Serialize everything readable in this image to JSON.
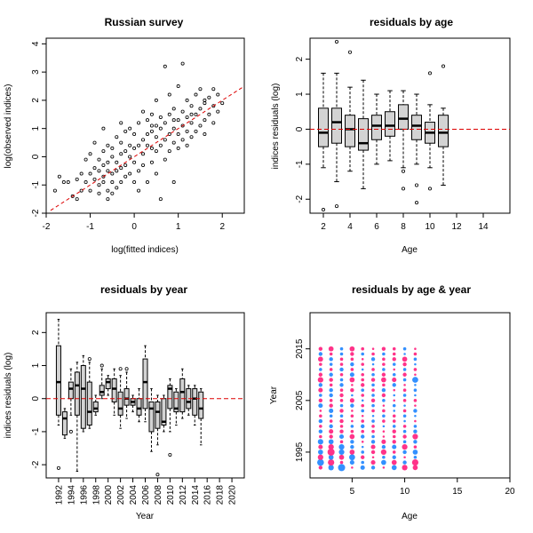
{
  "chart_data": [
    {
      "type": "scatter",
      "title": "Russian survey",
      "xlabel": "log(fitted indices)",
      "ylabel": "log(observed indices)",
      "xlim": [
        -2.0,
        2.5
      ],
      "ylim": [
        -2.0,
        4.2
      ],
      "xticks": [
        "-2",
        "-1",
        "0",
        "1",
        "2"
      ],
      "yticks": [
        "-2",
        "-1",
        "0",
        "1",
        "2",
        "3",
        "4"
      ],
      "ref_line": {
        "slope": 1,
        "intercept": 0,
        "color": "#dd0000",
        "style": "dashed"
      },
      "points": [
        [
          -1.8,
          -1.2
        ],
        [
          -1.7,
          -0.7
        ],
        [
          -1.6,
          -0.9
        ],
        [
          -1.5,
          -0.9
        ],
        [
          -1.4,
          -1.4
        ],
        [
          -1.3,
          -0.8
        ],
        [
          -1.3,
          -1.5
        ],
        [
          -1.2,
          -1.2
        ],
        [
          -1.2,
          -0.6
        ],
        [
          -1.1,
          -0.9
        ],
        [
          -1.1,
          -0.1
        ],
        [
          -1.0,
          -1.2
        ],
        [
          -1.0,
          -0.6
        ],
        [
          -1.0,
          0.1
        ],
        [
          -0.9,
          -0.8
        ],
        [
          -0.9,
          -0.4
        ],
        [
          -0.9,
          0.5
        ],
        [
          -0.8,
          -1.3
        ],
        [
          -0.8,
          -1.0
        ],
        [
          -0.8,
          -0.5
        ],
        [
          -0.8,
          -0.1
        ],
        [
          -0.7,
          -0.9
        ],
        [
          -0.7,
          -0.7
        ],
        [
          -0.7,
          -0.3
        ],
        [
          -0.7,
          0.2
        ],
        [
          -0.7,
          1.0
        ],
        [
          -0.6,
          -1.5
        ],
        [
          -0.6,
          -1.2
        ],
        [
          -0.6,
          -0.5
        ],
        [
          -0.6,
          -0.2
        ],
        [
          -0.6,
          0.4
        ],
        [
          -0.5,
          -1.3
        ],
        [
          -0.5,
          -0.9
        ],
        [
          -0.5,
          -0.6
        ],
        [
          -0.5,
          0.0
        ],
        [
          -0.5,
          0.3
        ],
        [
          -0.4,
          -1.1
        ],
        [
          -0.4,
          -0.5
        ],
        [
          -0.4,
          -0.2
        ],
        [
          -0.4,
          0.7
        ],
        [
          -0.3,
          -0.9
        ],
        [
          -0.3,
          -0.4
        ],
        [
          -0.3,
          0.1
        ],
        [
          -0.3,
          0.5
        ],
        [
          -0.3,
          1.2
        ],
        [
          -0.2,
          -0.7
        ],
        [
          -0.2,
          -0.3
        ],
        [
          -0.2,
          0.2
        ],
        [
          -0.2,
          0.9
        ],
        [
          -0.1,
          -0.6
        ],
        [
          -0.1,
          0.0
        ],
        [
          -0.1,
          0.4
        ],
        [
          -0.1,
          1.0
        ],
        [
          0.0,
          -0.9
        ],
        [
          0.0,
          -0.2
        ],
        [
          0.0,
          0.3
        ],
        [
          0.0,
          0.8
        ],
        [
          0.1,
          -1.2
        ],
        [
          0.1,
          -0.5
        ],
        [
          0.1,
          0.4
        ],
        [
          0.1,
          1.2
        ],
        [
          0.2,
          -0.3
        ],
        [
          0.2,
          0.1
        ],
        [
          0.2,
          0.6
        ],
        [
          0.2,
          1.6
        ],
        [
          0.3,
          -0.9
        ],
        [
          0.3,
          0.4
        ],
        [
          0.3,
          0.8
        ],
        [
          0.3,
          1.3
        ],
        [
          0.4,
          -0.2
        ],
        [
          0.4,
          0.3
        ],
        [
          0.4,
          0.9
        ],
        [
          0.4,
          1.5
        ],
        [
          0.5,
          -0.6
        ],
        [
          0.5,
          0.2
        ],
        [
          0.5,
          0.7
        ],
        [
          0.5,
          1.1
        ],
        [
          0.5,
          2.0
        ],
        [
          0.6,
          -1.5
        ],
        [
          0.6,
          0.4
        ],
        [
          0.6,
          1.0
        ],
        [
          0.6,
          1.4
        ],
        [
          0.7,
          -0.1
        ],
        [
          0.7,
          0.6
        ],
        [
          0.7,
          1.2
        ],
        [
          0.7,
          3.2
        ],
        [
          0.8,
          0.2
        ],
        [
          0.8,
          0.8
        ],
        [
          0.8,
          1.5
        ],
        [
          0.8,
          2.2
        ],
        [
          0.9,
          -0.9
        ],
        [
          0.9,
          0.5
        ],
        [
          0.9,
          1.0
        ],
        [
          0.9,
          1.7
        ],
        [
          1.0,
          0.3
        ],
        [
          1.0,
          0.8
        ],
        [
          1.0,
          1.3
        ],
        [
          1.0,
          2.5
        ],
        [
          1.1,
          0.6
        ],
        [
          1.1,
          1.1
        ],
        [
          1.1,
          1.6
        ],
        [
          1.1,
          3.3
        ],
        [
          1.2,
          0.4
        ],
        [
          1.2,
          0.9
        ],
        [
          1.2,
          1.4
        ],
        [
          1.2,
          2.0
        ],
        [
          1.3,
          0.7
        ],
        [
          1.3,
          1.2
        ],
        [
          1.3,
          1.8
        ],
        [
          1.4,
          0.9
        ],
        [
          1.4,
          1.5
        ],
        [
          1.4,
          2.2
        ],
        [
          1.5,
          1.1
        ],
        [
          1.5,
          1.7
        ],
        [
          1.5,
          2.4
        ],
        [
          1.6,
          0.8
        ],
        [
          1.6,
          1.3
        ],
        [
          1.6,
          1.9
        ],
        [
          1.7,
          1.5
        ],
        [
          1.7,
          2.1
        ],
        [
          1.8,
          1.2
        ],
        [
          1.8,
          1.8
        ],
        [
          1.8,
          2.4
        ],
        [
          1.9,
          1.6
        ],
        [
          1.9,
          2.2
        ],
        [
          2.0,
          1.9
        ],
        [
          1.6,
          2.0
        ],
        [
          1.3,
          1.5
        ],
        [
          0.9,
          1.3
        ],
        [
          0.4,
          1.1
        ]
      ]
    },
    {
      "type": "box",
      "title": "residuals by age",
      "xlabel": "Age",
      "ylabel": "indices residuals (log)",
      "xlim": [
        1,
        16
      ],
      "ylim": [
        -2.4,
        2.6
      ],
      "xticks": [
        "2",
        "4",
        "6",
        "8",
        "10",
        "12",
        "14"
      ],
      "yticks": [
        "-2",
        "-1",
        "0",
        "1",
        "2"
      ],
      "ref_line": {
        "y": 0,
        "color": "#dd0000",
        "style": "dashed"
      },
      "boxes": [
        {
          "x": 2,
          "lo": -1.1,
          "q1": -0.5,
          "med": -0.1,
          "q3": 0.6,
          "hi": 1.6,
          "out": [
            -2.3
          ]
        },
        {
          "x": 3,
          "lo": -1.5,
          "q1": -0.4,
          "med": 0.2,
          "q3": 0.6,
          "hi": 1.6,
          "out": [
            2.5,
            -2.2
          ]
        },
        {
          "x": 4,
          "lo": -1.2,
          "q1": -0.5,
          "med": 0.0,
          "q3": 0.4,
          "hi": 1.2,
          "out": [
            2.2
          ]
        },
        {
          "x": 5,
          "lo": -1.7,
          "q1": -0.6,
          "med": -0.4,
          "q3": 0.3,
          "hi": 1.4,
          "out": []
        },
        {
          "x": 6,
          "lo": -1.0,
          "q1": -0.3,
          "med": 0.1,
          "q3": 0.4,
          "hi": 1.0,
          "out": []
        },
        {
          "x": 7,
          "lo": -0.9,
          "q1": -0.2,
          "med": 0.1,
          "q3": 0.5,
          "hi": 1.1,
          "out": []
        },
        {
          "x": 8,
          "lo": -1.1,
          "q1": 0.0,
          "med": 0.3,
          "q3": 0.7,
          "hi": 1.1,
          "out": [
            -1.7,
            -1.2
          ]
        },
        {
          "x": 9,
          "lo": -1.0,
          "q1": -0.3,
          "med": 0.1,
          "q3": 0.4,
          "hi": 1.0,
          "out": [
            -1.6,
            -2.1
          ]
        },
        {
          "x": 10,
          "lo": -1.1,
          "q1": -0.4,
          "med": -0.1,
          "q3": 0.2,
          "hi": 0.7,
          "out": [
            1.6,
            -1.7
          ]
        },
        {
          "x": 11,
          "lo": -1.6,
          "q1": -0.5,
          "med": -0.1,
          "q3": 0.4,
          "hi": 0.6,
          "out": [
            1.8
          ]
        }
      ]
    },
    {
      "type": "box",
      "title": "residuals by year",
      "xlabel": "Year",
      "ylabel": "indices residuals (log)",
      "xlim": [
        1990,
        2022
      ],
      "ylim": [
        -2.4,
        2.6
      ],
      "xticks": [
        "1992",
        "1994",
        "1996",
        "1998",
        "2000",
        "2002",
        "2004",
        "2006",
        "2008",
        "2010",
        "2012",
        "2014",
        "2016",
        "2018",
        "2020"
      ],
      "yticks": [
        "-2",
        "-1",
        "0",
        "1",
        "2"
      ],
      "ref_line": {
        "y": 0,
        "color": "#dd0000",
        "style": "dashed"
      },
      "boxes": [
        {
          "x": 1992,
          "lo": -0.8,
          "q1": -0.5,
          "med": 0.5,
          "q3": 1.6,
          "hi": 2.4,
          "out": [
            -2.1
          ]
        },
        {
          "x": 1993,
          "lo": -1.2,
          "q1": -1.1,
          "med": -0.6,
          "q3": -0.4,
          "hi": -0.3,
          "out": []
        },
        {
          "x": 1994,
          "lo": -0.5,
          "q1": 0.0,
          "med": 0.3,
          "q3": 0.5,
          "hi": 0.9,
          "out": [
            -1.0
          ]
        },
        {
          "x": 1995,
          "lo": -2.2,
          "q1": -0.5,
          "med": 0.4,
          "q3": 0.8,
          "hi": 1.1,
          "out": []
        },
        {
          "x": 1996,
          "lo": -1.0,
          "q1": -0.9,
          "med": 0.3,
          "q3": 1.0,
          "hi": 1.3,
          "out": []
        },
        {
          "x": 1997,
          "lo": -0.9,
          "q1": -0.8,
          "med": -0.4,
          "q3": 0.5,
          "hi": 1.1,
          "out": [
            1.2
          ]
        },
        {
          "x": 1998,
          "lo": -0.5,
          "q1": -0.4,
          "med": -0.3,
          "q3": -0.1,
          "hi": 0.1,
          "out": []
        },
        {
          "x": 1999,
          "lo": 0.0,
          "q1": 0.1,
          "med": 0.2,
          "q3": 0.4,
          "hi": 0.9,
          "out": [
            1.0
          ]
        },
        {
          "x": 2000,
          "lo": 0.1,
          "q1": 0.3,
          "med": 0.5,
          "q3": 0.6,
          "hi": 0.7,
          "out": []
        },
        {
          "x": 2001,
          "lo": -0.5,
          "q1": -0.1,
          "med": 0.3,
          "q3": 0.6,
          "hi": 0.9,
          "out": []
        },
        {
          "x": 2002,
          "lo": -0.9,
          "q1": -0.5,
          "med": -0.3,
          "q3": 0.2,
          "hi": 0.7,
          "out": [
            0.9
          ]
        },
        {
          "x": 2003,
          "lo": -0.6,
          "q1": -0.2,
          "med": 0.0,
          "q3": 0.3,
          "hi": 0.8,
          "out": [
            0.9
          ]
        },
        {
          "x": 2004,
          "lo": -0.4,
          "q1": -0.2,
          "med": -0.1,
          "q3": 0.0,
          "hi": 0.1,
          "out": []
        },
        {
          "x": 2005,
          "lo": -0.7,
          "q1": -0.5,
          "med": -0.3,
          "q3": 0.0,
          "hi": 0.3,
          "out": []
        },
        {
          "x": 2006,
          "lo": -0.7,
          "q1": -0.3,
          "med": 0.5,
          "q3": 1.2,
          "hi": 1.6,
          "out": []
        },
        {
          "x": 2007,
          "lo": -1.6,
          "q1": -1.0,
          "med": -0.3,
          "q3": -0.1,
          "hi": 0.3,
          "out": []
        },
        {
          "x": 2008,
          "lo": -1.4,
          "q1": -0.9,
          "med": -0.4,
          "q3": -0.1,
          "hi": 0.1,
          "out": [
            -2.3
          ]
        },
        {
          "x": 2009,
          "lo": -1.0,
          "q1": -0.8,
          "med": -0.7,
          "q3": 0.0,
          "hi": 0.1,
          "out": []
        },
        {
          "x": 2010,
          "lo": -1.0,
          "q1": -0.3,
          "med": 0.3,
          "q3": 0.4,
          "hi": 0.6,
          "out": [
            -1.7
          ]
        },
        {
          "x": 2011,
          "lo": -0.8,
          "q1": -0.4,
          "med": -0.3,
          "q3": 0.2,
          "hi": 0.3,
          "out": []
        },
        {
          "x": 2012,
          "lo": -0.6,
          "q1": -0.4,
          "med": 0.2,
          "q3": 0.6,
          "hi": 0.9,
          "out": []
        },
        {
          "x": 2013,
          "lo": -0.5,
          "q1": -0.3,
          "med": -0.1,
          "q3": 0.3,
          "hi": 0.4,
          "out": []
        },
        {
          "x": 2014,
          "lo": -0.8,
          "q1": -0.5,
          "med": 0.0,
          "q3": 0.3,
          "hi": 0.4,
          "out": []
        },
        {
          "x": 2015,
          "lo": -1.4,
          "q1": -0.6,
          "med": -0.3,
          "q3": 0.2,
          "hi": 0.3,
          "out": []
        }
      ]
    },
    {
      "type": "bubble",
      "title": "residuals by age & year",
      "xlabel": "Age",
      "ylabel": "Year",
      "xlim": [
        1,
        20
      ],
      "ylim": [
        1990,
        2022
      ],
      "xticks": [
        "5",
        "10",
        "15",
        "20"
      ],
      "yticks": [
        "1995",
        "2005",
        "2015"
      ],
      "colors": {
        "positive": "#ff3389",
        "negative": "#3390ff"
      },
      "ages": [
        2,
        3,
        4,
        5,
        6,
        7,
        8,
        9,
        10,
        11
      ],
      "years_from": 1992,
      "residuals": [
        [
          0.3,
          -0.6,
          -1.0,
          0.1,
          -0.4,
          -0.3,
          0.1,
          -0.5,
          0.6,
          0.5
        ],
        [
          -0.9,
          0.8,
          0.2,
          -0.4,
          -0.2,
          0.4,
          -0.5,
          0.5,
          -0.3,
          0.8
        ],
        [
          0.6,
          -0.5,
          0.5,
          -0.7,
          0.3,
          0.1,
          -0.2,
          -0.3,
          0.1,
          -0.2
        ],
        [
          -0.5,
          1.0,
          -0.6,
          0.5,
          -0.2,
          0.3,
          0.6,
          0.2,
          -0.3,
          -0.5
        ],
        [
          0.4,
          0.6,
          -0.6,
          -0.3,
          -0.1,
          0.4,
          -0.3,
          -0.4,
          0.6,
          0.2
        ],
        [
          -0.6,
          -0.5,
          0.2,
          -0.3,
          0.1,
          -0.3,
          0.4,
          0.3,
          -0.2,
          -0.3
        ],
        [
          0.2,
          0.3,
          -0.4,
          0.5,
          -0.3,
          -0.2,
          0.1,
          0.2,
          0.3,
          0.6
        ],
        [
          -0.3,
          0.4,
          0.3,
          0.2,
          0.2,
          0.2,
          0.1,
          0.3,
          -0.2,
          -0.3
        ],
        [
          0.2,
          -0.3,
          0.2,
          -0.2,
          -0.3,
          0.2,
          -0.1,
          -0.2,
          0.2,
          -0.2
        ],
        [
          -0.3,
          0.2,
          0.3,
          0.1,
          0.2,
          -0.2,
          0.2,
          0.2,
          -0.1,
          0.1
        ],
        [
          0.2,
          -0.2,
          -0.2,
          0.2,
          0.1,
          -0.1,
          -0.2,
          0.2,
          -0.2,
          -0.1
        ],
        [
          0.1,
          -0.4,
          0.3,
          0.1,
          -0.2,
          0.2,
          0.2,
          -0.1,
          0.2,
          -0.3
        ],
        [
          -0.4,
          0.3,
          -0.2,
          -0.3,
          0.2,
          -0.2,
          0.1,
          -0.2,
          -0.1,
          0.1
        ],
        [
          0.3,
          0.2,
          0.2,
          0.4,
          -0.1,
          0.3,
          -0.2,
          0.1,
          0.2,
          0.2
        ],
        [
          -0.2,
          -0.3,
          0.3,
          -0.1,
          0.2,
          -0.2,
          0.3,
          -0.1,
          -0.2,
          -0.1
        ],
        [
          0.4,
          -0.3,
          0.2,
          0.3,
          -0.2,
          0.2,
          -0.3,
          0.1,
          0.2,
          -0.2
        ],
        [
          -0.3,
          0.2,
          -0.3,
          0.1,
          0.3,
          -0.2,
          0.2,
          -0.3,
          0.1,
          -0.1
        ],
        [
          0.6,
          0.3,
          -0.2,
          0.5,
          0.2,
          0.3,
          0.5,
          0.4,
          -0.2,
          -0.7
        ],
        [
          0.3,
          -0.3,
          0.2,
          -0.4,
          0.2,
          -0.2,
          0.3,
          -0.2,
          0.3,
          0.1
        ],
        [
          -0.2,
          0.2,
          -0.3,
          0.2,
          -0.1,
          0.2,
          -0.2,
          0.1,
          -0.2,
          0.2
        ],
        [
          0.2,
          -0.2,
          0.2,
          -0.3,
          0.2,
          -0.1,
          0.2,
          -0.2,
          0.3,
          -0.1
        ],
        [
          0.5,
          -0.3,
          0.2,
          0.2,
          0.1,
          -0.3,
          0.2,
          0.3,
          0.5,
          -0.2
        ],
        [
          -0.3,
          0.2,
          -0.2,
          0.3,
          -0.2,
          0.2,
          -0.2,
          0.2,
          -0.1,
          0.2
        ],
        [
          0.3,
          0.5,
          -0.2,
          0.5,
          0.2,
          0.1,
          0.3,
          0.2,
          -0.2,
          0.1
        ]
      ]
    }
  ]
}
